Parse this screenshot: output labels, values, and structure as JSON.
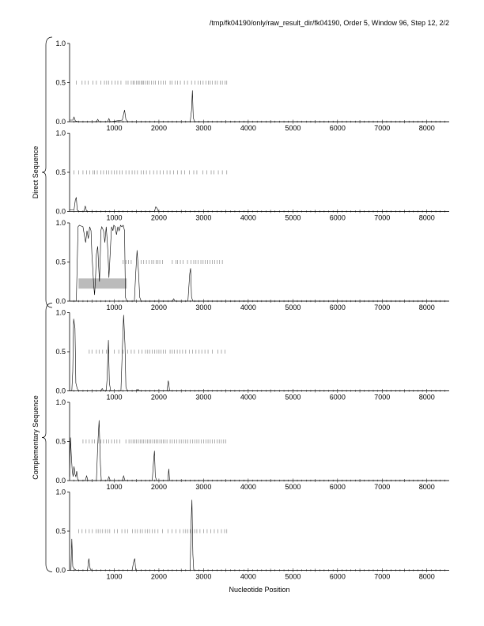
{
  "title": "/tmp/fk04190/only/raw_result_dir/fk04190, Order 5, Window 96, Step 12, 2/2",
  "group_labels": {
    "direct": "Direct Sequence",
    "complementary": "Complementary Sequence"
  },
  "xlabel": "Nucleotide Position",
  "colors": {
    "line": "#000000",
    "ticks": "#777777",
    "highlight": "#bbbbbb",
    "axis": "#000000"
  },
  "chart_data": {
    "type": "line",
    "xlim": [
      0,
      8500
    ],
    "ylim": [
      0,
      1
    ],
    "x_ticks": [
      1000,
      2000,
      3000,
      4000,
      5000,
      6000,
      7000,
      8000
    ],
    "y_ticks": [
      0.0,
      0.5,
      1.0
    ],
    "y_tick_labels": [
      "0.0",
      "0.5",
      "1.0"
    ],
    "panels": [
      {
        "group": "direct",
        "orf_marks_y": 0.5,
        "orf_marks": [
          150,
          280,
          350,
          420,
          520,
          600,
          700,
          780,
          830,
          880,
          950,
          1020,
          1080,
          1150,
          1260,
          1310,
          1380,
          1420,
          1450,
          1500,
          1530,
          1560,
          1600,
          1630,
          1660,
          1700,
          1740,
          1780,
          1830,
          1880,
          1920,
          1990,
          2050,
          2100,
          2150,
          2250,
          2290,
          2360,
          2420,
          2480,
          2570,
          2640,
          2730,
          2810,
          2880,
          2930,
          2990,
          3050,
          3110,
          3150,
          3200,
          3260,
          3310,
          3370,
          3420,
          3480,
          3520
        ],
        "highlight": null,
        "points": [
          [
            0,
            0.02
          ],
          [
            70,
            0.02
          ],
          [
            100,
            0.06
          ],
          [
            130,
            0.01
          ],
          [
            200,
            0
          ],
          [
            600,
            0
          ],
          [
            630,
            0.03
          ],
          [
            660,
            0
          ],
          [
            850,
            0
          ],
          [
            880,
            0.04
          ],
          [
            910,
            0
          ],
          [
            1180,
            0.02
          ],
          [
            1230,
            0.15
          ],
          [
            1260,
            0.03
          ],
          [
            1300,
            0
          ],
          [
            2700,
            0
          ],
          [
            2730,
            0.15
          ],
          [
            2750,
            0.4
          ],
          [
            2770,
            0.05
          ],
          [
            2800,
            0
          ],
          [
            8500,
            0
          ]
        ]
      },
      {
        "group": "direct",
        "orf_marks_y": 0.5,
        "orf_marks": [
          100,
          200,
          300,
          380,
          450,
          520,
          560,
          620,
          700,
          760,
          820,
          880,
          940,
          1000,
          1060,
          1120,
          1180,
          1260,
          1330,
          1400,
          1460,
          1520,
          1600,
          1660,
          1720,
          1800,
          1880,
          1960,
          2030,
          2100,
          2180,
          2250,
          2330,
          2420,
          2500,
          2580,
          2680,
          2780,
          2850,
          2980,
          3070,
          3170,
          3230,
          3330,
          3420,
          3520
        ],
        "highlight": null,
        "points": [
          [
            0,
            0.02
          ],
          [
            100,
            0.02
          ],
          [
            130,
            0.15
          ],
          [
            150,
            0.18
          ],
          [
            170,
            0.02
          ],
          [
            200,
            0
          ],
          [
            320,
            0
          ],
          [
            350,
            0.07
          ],
          [
            380,
            0
          ],
          [
            1900,
            0
          ],
          [
            1930,
            0.06
          ],
          [
            1960,
            0.04
          ],
          [
            1990,
            0
          ],
          [
            8500,
            0
          ]
        ]
      },
      {
        "group": "direct",
        "orf_marks_y": 0.5,
        "orf_marks": [
          1200,
          1260,
          1320,
          1380,
          1600,
          1660,
          1720,
          1780,
          1840,
          1880,
          1940,
          1980,
          2020,
          2080,
          2300,
          2380,
          2420,
          2480,
          2540,
          2640,
          2720,
          2780,
          2830,
          2880,
          2940,
          2990,
          3040,
          3090,
          3140,
          3200,
          3250,
          3300,
          3360,
          3420
        ],
        "highlight": [
          200,
          1280,
          0.16,
          0.29
        ],
        "points": [
          [
            0,
            0
          ],
          [
            150,
            0
          ],
          [
            190,
            0.95
          ],
          [
            220,
            0.97
          ],
          [
            260,
            0.96
          ],
          [
            300,
            0.95
          ],
          [
            330,
            0.85
          ],
          [
            360,
            0.75
          ],
          [
            390,
            0.9
          ],
          [
            420,
            0.8
          ],
          [
            450,
            0.95
          ],
          [
            480,
            0.9
          ],
          [
            500,
            0.6
          ],
          [
            520,
            0.4
          ],
          [
            540,
            0.2
          ],
          [
            560,
            0.08
          ],
          [
            580,
            0.3
          ],
          [
            600,
            0.6
          ],
          [
            630,
            0.7
          ],
          [
            650,
            0.45
          ],
          [
            670,
            0.25
          ],
          [
            690,
            0.65
          ],
          [
            700,
            0.9
          ],
          [
            720,
            0.95
          ],
          [
            760,
            0.9
          ],
          [
            790,
            0.75
          ],
          [
            820,
            0.95
          ],
          [
            840,
            0.8
          ],
          [
            860,
            0.6
          ],
          [
            880,
            0.3
          ],
          [
            900,
            0.5
          ],
          [
            920,
            0.75
          ],
          [
            940,
            0.95
          ],
          [
            970,
            0.9
          ],
          [
            990,
            0.97
          ],
          [
            1020,
            0.95
          ],
          [
            1050,
            0.85
          ],
          [
            1080,
            0.95
          ],
          [
            1110,
            0.9
          ],
          [
            1140,
            0.97
          ],
          [
            1170,
            0.95
          ],
          [
            1200,
            0.97
          ],
          [
            1230,
            0.9
          ],
          [
            1250,
            0.05
          ],
          [
            1280,
            0
          ],
          [
            1450,
            0
          ],
          [
            1480,
            0.35
          ],
          [
            1510,
            0.65
          ],
          [
            1540,
            0.4
          ],
          [
            1570,
            0.05
          ],
          [
            1600,
            0
          ],
          [
            2300,
            0
          ],
          [
            2330,
            0.03
          ],
          [
            2360,
            0
          ],
          [
            2650,
            0
          ],
          [
            2690,
            0.35
          ],
          [
            2710,
            0.42
          ],
          [
            2730,
            0.05
          ],
          [
            2760,
            0
          ],
          [
            8500,
            0
          ]
        ]
      },
      {
        "group": "complementary",
        "orf_marks_y": 0.5,
        "orf_marks": [
          440,
          500,
          600,
          660,
          740,
          820,
          880,
          1000,
          1100,
          1200,
          1300,
          1380,
          1450,
          1550,
          1620,
          1700,
          1750,
          1800,
          1850,
          1900,
          1950,
          2000,
          2050,
          2100,
          2150,
          2250,
          2300,
          2350,
          2410,
          2470,
          2530,
          2600,
          2680,
          2750,
          2830,
          2900,
          2960,
          3030,
          3100,
          3200,
          3320,
          3400,
          3480
        ],
        "highlight": null,
        "points": [
          [
            0,
            0
          ],
          [
            50,
            0
          ],
          [
            70,
            0.25
          ],
          [
            90,
            0.92
          ],
          [
            120,
            0.8
          ],
          [
            140,
            0.1
          ],
          [
            170,
            0.03
          ],
          [
            200,
            0
          ],
          [
            700,
            0
          ],
          [
            730,
            0.03
          ],
          [
            760,
            0
          ],
          [
            820,
            0
          ],
          [
            840,
            0.15
          ],
          [
            870,
            0.65
          ],
          [
            890,
            0.1
          ],
          [
            920,
            0
          ],
          [
            1150,
            0
          ],
          [
            1180,
            0.5
          ],
          [
            1210,
            0.97
          ],
          [
            1240,
            0.6
          ],
          [
            1260,
            0.05
          ],
          [
            1290,
            0
          ],
          [
            1500,
            0
          ],
          [
            1530,
            0.02
          ],
          [
            1560,
            0
          ],
          [
            2180,
            0
          ],
          [
            2210,
            0.13
          ],
          [
            2240,
            0
          ],
          [
            8500,
            0
          ]
        ]
      },
      {
        "group": "complementary",
        "orf_marks_y": 0.5,
        "orf_marks": [
          300,
          370,
          440,
          500,
          560,
          640,
          700,
          760,
          820,
          880,
          940,
          1000,
          1060,
          1120,
          1260,
          1330,
          1380,
          1420,
          1460,
          1500,
          1540,
          1580,
          1620,
          1660,
          1700,
          1740,
          1780,
          1820,
          1860,
          1900,
          1940,
          1980,
          2020,
          2060,
          2100,
          2140,
          2180,
          2250,
          2300,
          2350,
          2400,
          2450,
          2500,
          2550,
          2600,
          2650,
          2700,
          2750,
          2800,
          2850,
          2900,
          2950,
          3000,
          3050,
          3100,
          3150,
          3200,
          3250,
          3300,
          3350,
          3400,
          3450,
          3500
        ],
        "highlight": null,
        "points": [
          [
            0,
            0.05
          ],
          [
            20,
            0.55
          ],
          [
            40,
            0.3
          ],
          [
            60,
            0.12
          ],
          [
            80,
            0.05
          ],
          [
            100,
            0.18
          ],
          [
            120,
            0.08
          ],
          [
            140,
            0.05
          ],
          [
            160,
            0.12
          ],
          [
            180,
            0.02
          ],
          [
            200,
            0
          ],
          [
            350,
            0
          ],
          [
            380,
            0.06
          ],
          [
            410,
            0
          ],
          [
            600,
            0
          ],
          [
            630,
            0.45
          ],
          [
            660,
            0.77
          ],
          [
            690,
            0.2
          ],
          [
            710,
            0
          ],
          [
            850,
            0
          ],
          [
            880,
            0.05
          ],
          [
            910,
            0
          ],
          [
            1180,
            0
          ],
          [
            1210,
            0.06
          ],
          [
            1240,
            0
          ],
          [
            1850,
            0
          ],
          [
            1880,
            0.25
          ],
          [
            1900,
            0.38
          ],
          [
            1920,
            0.05
          ],
          [
            1950,
            0
          ],
          [
            2200,
            0
          ],
          [
            2220,
            0.15
          ],
          [
            2240,
            0
          ],
          [
            8500,
            0
          ]
        ]
      },
      {
        "group": "complementary",
        "orf_marks_y": 0.5,
        "orf_marks": [
          200,
          280,
          360,
          440,
          510,
          590,
          640,
          690,
          740,
          800,
          850,
          900,
          1000,
          1070,
          1170,
          1240,
          1300,
          1410,
          1470,
          1520,
          1580,
          1630,
          1690,
          1740,
          1790,
          1850,
          1910,
          1980,
          2080,
          2200,
          2290,
          2380,
          2470,
          2550,
          2600,
          2650,
          2700,
          2750,
          2800,
          2850,
          2920,
          3000,
          3080,
          3160,
          3240,
          3320,
          3400,
          3470,
          3520
        ],
        "highlight": null,
        "points": [
          [
            0,
            0
          ],
          [
            30,
            0
          ],
          [
            50,
            0.4
          ],
          [
            70,
            0.05
          ],
          [
            100,
            0.02
          ],
          [
            150,
            0
          ],
          [
            400,
            0
          ],
          [
            430,
            0.15
          ],
          [
            460,
            0.02
          ],
          [
            490,
            0
          ],
          [
            1400,
            0
          ],
          [
            1430,
            0.1
          ],
          [
            1460,
            0.15
          ],
          [
            1480,
            0
          ],
          [
            2700,
            0
          ],
          [
            2720,
            0.6
          ],
          [
            2740,
            0.9
          ],
          [
            2760,
            0.2
          ],
          [
            2780,
            0
          ],
          [
            8500,
            0
          ]
        ]
      }
    ]
  }
}
